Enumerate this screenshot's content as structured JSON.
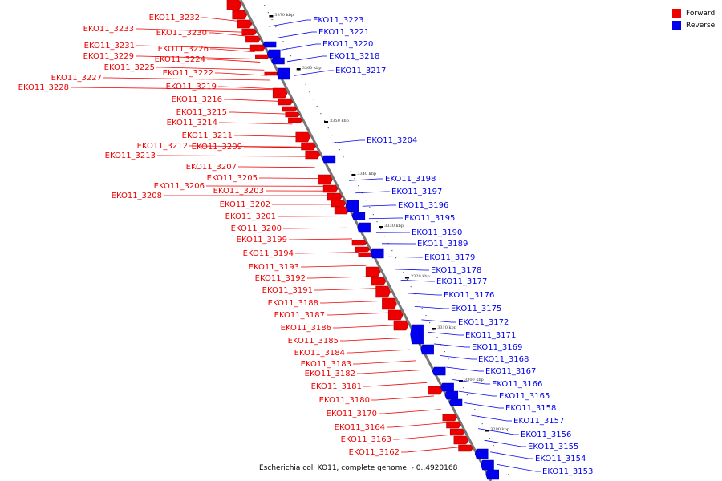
{
  "legend": {
    "forward": {
      "label": "Forward",
      "color": "#ee0000"
    },
    "reverse": {
      "label": "Reverse",
      "color": "#0000ee"
    }
  },
  "caption": "Escherichia coli KO11, complete genome. - 0..4920168",
  "scale_labels": [
    "3370 kbp",
    "3360 kbp",
    "3350 kbp",
    "3340 kbp",
    "3330 kbp",
    "3320 kbp",
    "3310 kbp",
    "3300 kbp",
    "3290 kbp"
  ],
  "forward_genes": [
    "EKO11_3232",
    "EKO11_3233",
    "EKO11_3230",
    "EKO11_3231",
    "EKO11_3226",
    "EKO11_3229",
    "EKO11_3224",
    "EKO11_3225",
    "EKO11_3222",
    "EKO11_3227",
    "EKO11_3228",
    "EKO11_3219",
    "EKO11_3216",
    "EKO11_3215",
    "EKO11_3214",
    "EKO11_3211",
    "EKO11_3212",
    "EKO11_3209",
    "EKO11_3213",
    "EKO11_3207",
    "EKO11_3205",
    "EKO11_3206",
    "EKO11_3203",
    "EKO11_3208",
    "EKO11_3202",
    "EKO11_3201",
    "EKO11_3200",
    "EKO11_3199",
    "EKO11_3194",
    "EKO11_3193",
    "EKO11_3192",
    "EKO11_3191",
    "EKO11_3188",
    "EKO11_3187",
    "EKO11_3186",
    "EKO11_3185",
    "EKO11_3184",
    "EKO11_3183",
    "EKO11_3182",
    "EKO11_3181",
    "EKO11_3180",
    "EKO11_3170",
    "EKO11_3164",
    "EKO11_3163",
    "EKO11_3162"
  ],
  "reverse_genes": [
    "EKO11_3223",
    "EKO11_3221",
    "EKO11_3220",
    "EKO11_3218",
    "EKO11_3217",
    "EKO11_3204",
    "EKO11_3198",
    "EKO11_3197",
    "EKO11_3196",
    "EKO11_3195",
    "EKO11_3190",
    "EKO11_3189",
    "EKO11_3179",
    "EKO11_3178",
    "EKO11_3177",
    "EKO11_3176",
    "EKO11_3175",
    "EKO11_3172",
    "EKO11_3171",
    "EKO11_3169",
    "EKO11_3168",
    "EKO11_3167",
    "EKO11_3166",
    "EKO11_3165",
    "EKO11_3158",
    "EKO11_3157",
    "EKO11_3156",
    "EKO11_3155",
    "EKO11_3154",
    "EKO11_3153"
  ]
}
